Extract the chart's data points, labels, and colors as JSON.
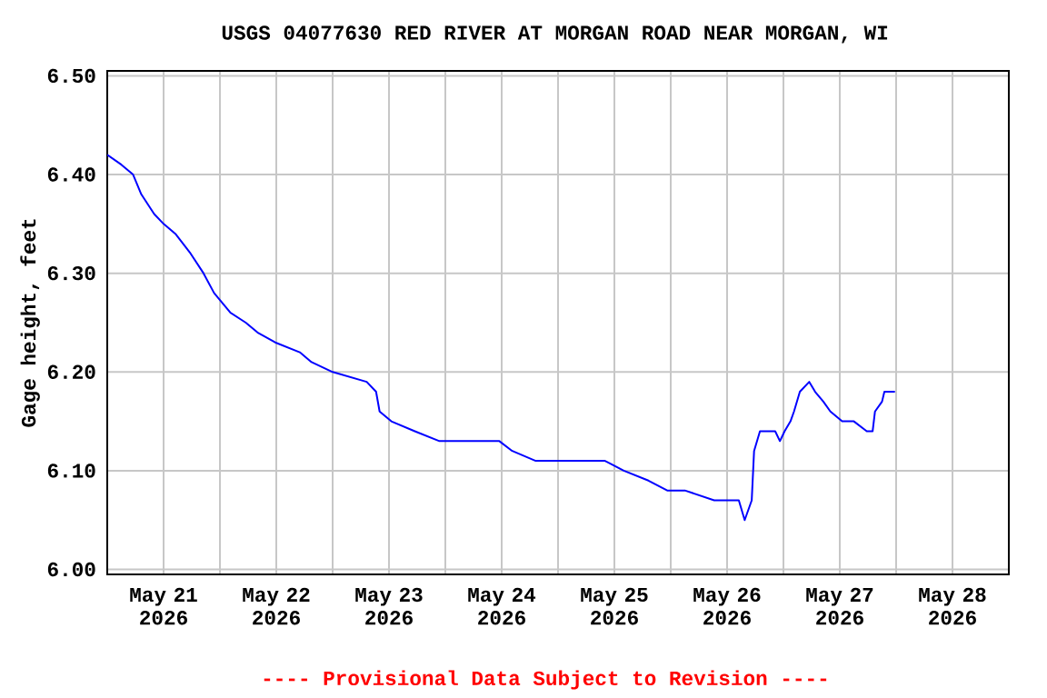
{
  "chart_data": {
    "type": "line",
    "title": "USGS 04077630 RED RIVER AT MORGAN ROAD NEAR MORGAN, WI",
    "ylabel": "Gage height, feet",
    "annotations": [
      "---- Provisional Data Subject to Revision ----"
    ],
    "x": [
      "2026-05-21T00:00",
      "2026-05-21T03:00",
      "2026-05-21T05:30",
      "2026-05-21T07:15",
      "2026-05-21T10:00",
      "2026-05-21T12:00",
      "2026-05-21T14:30",
      "2026-05-21T17:45",
      "2026-05-21T20:30",
      "2026-05-21T22:45",
      "2026-05-22T02:15",
      "2026-05-22T05:30",
      "2026-05-22T08:00",
      "2026-05-22T11:45",
      "2026-05-22T17:00",
      "2026-05-22T19:30",
      "2026-05-23T00:00",
      "2026-05-23T07:15",
      "2026-05-23T09:15",
      "2026-05-23T10:00",
      "2026-05-23T12:30",
      "2026-05-23T17:30",
      "2026-05-23T22:45",
      "2026-05-24T04:00",
      "2026-05-24T11:30",
      "2026-05-24T14:15",
      "2026-05-24T19:15",
      "2026-05-24T23:15",
      "2026-05-25T10:00",
      "2026-05-25T14:00",
      "2026-05-25T19:15",
      "2026-05-25T23:15",
      "2026-05-26T03:00",
      "2026-05-26T09:15",
      "2026-05-26T14:30",
      "2026-05-26T15:45",
      "2026-05-26T17:15",
      "2026-05-26T17:45",
      "2026-05-26T19:00",
      "2026-05-26T22:15",
      "2026-05-26T23:15",
      "2026-05-27T00:15",
      "2026-05-27T01:30",
      "2026-05-27T02:15",
      "2026-05-27T03:30",
      "2026-05-27T05:30",
      "2026-05-27T06:45",
      "2026-05-27T08:30",
      "2026-05-27T10:00",
      "2026-05-27T12:30",
      "2026-05-27T15:00",
      "2026-05-27T17:45",
      "2026-05-27T19:00",
      "2026-05-27T19:30",
      "2026-05-27T21:00",
      "2026-05-27T21:30",
      "2026-05-27T23:45"
    ],
    "series": [
      {
        "color": "#0000ff",
        "values": [
          6.42,
          6.41,
          6.4,
          6.38,
          6.36,
          6.35,
          6.34,
          6.32,
          6.3,
          6.28,
          6.26,
          6.25,
          6.24,
          6.23,
          6.22,
          6.21,
          6.2,
          6.19,
          6.18,
          6.16,
          6.15,
          6.14,
          6.13,
          6.13,
          6.13,
          6.12,
          6.11,
          6.11,
          6.11,
          6.1,
          6.09,
          6.08,
          6.08,
          6.07,
          6.07,
          6.05,
          6.07,
          6.12,
          6.14,
          6.14,
          6.13,
          6.14,
          6.15,
          6.16,
          6.18,
          6.19,
          6.18,
          6.17,
          6.16,
          6.15,
          6.15,
          6.14,
          6.14,
          6.16,
          6.17,
          6.18,
          6.18
        ]
      }
    ],
    "xlim": [
      "2026-05-21T00:00",
      "2026-05-29T00:00"
    ],
    "xticks": [
      {
        "value": "2026-05-21T12:00",
        "label": "May 21 2026"
      },
      {
        "value": "2026-05-22T00:00",
        "label": null
      },
      {
        "value": "2026-05-22T12:00",
        "label": "May 22 2026"
      },
      {
        "value": "2026-05-23T00:00",
        "label": null
      },
      {
        "value": "2026-05-23T12:00",
        "label": "May 23 2026"
      },
      {
        "value": "2026-05-24T00:00",
        "label": null
      },
      {
        "value": "2026-05-24T12:00",
        "label": "May 24 2026"
      },
      {
        "value": "2026-05-25T00:00",
        "label": null
      },
      {
        "value": "2026-05-25T12:00",
        "label": "May 25 2026"
      },
      {
        "value": "2026-05-26T00:00",
        "label": null
      },
      {
        "value": "2026-05-26T12:00",
        "label": "May 26 2026"
      },
      {
        "value": "2026-05-27T00:00",
        "label": null
      },
      {
        "value": "2026-05-27T12:00",
        "label": "May 27 2026"
      },
      {
        "value": "2026-05-28T00:00",
        "label": null
      },
      {
        "value": "2026-05-28T12:00",
        "label": "May 28 2026"
      }
    ],
    "ylim": [
      5.995,
      6.505
    ],
    "yticks": [
      {
        "value": 6.0,
        "label": "6.00"
      },
      {
        "value": 6.1,
        "label": "6.10"
      },
      {
        "value": 6.2,
        "label": "6.20"
      },
      {
        "value": 6.3,
        "label": "6.30"
      },
      {
        "value": 6.4,
        "label": "6.40"
      },
      {
        "value": 6.5,
        "label": "6.50"
      }
    ],
    "grid": true,
    "marker": "none",
    "line_style": "solid"
  }
}
